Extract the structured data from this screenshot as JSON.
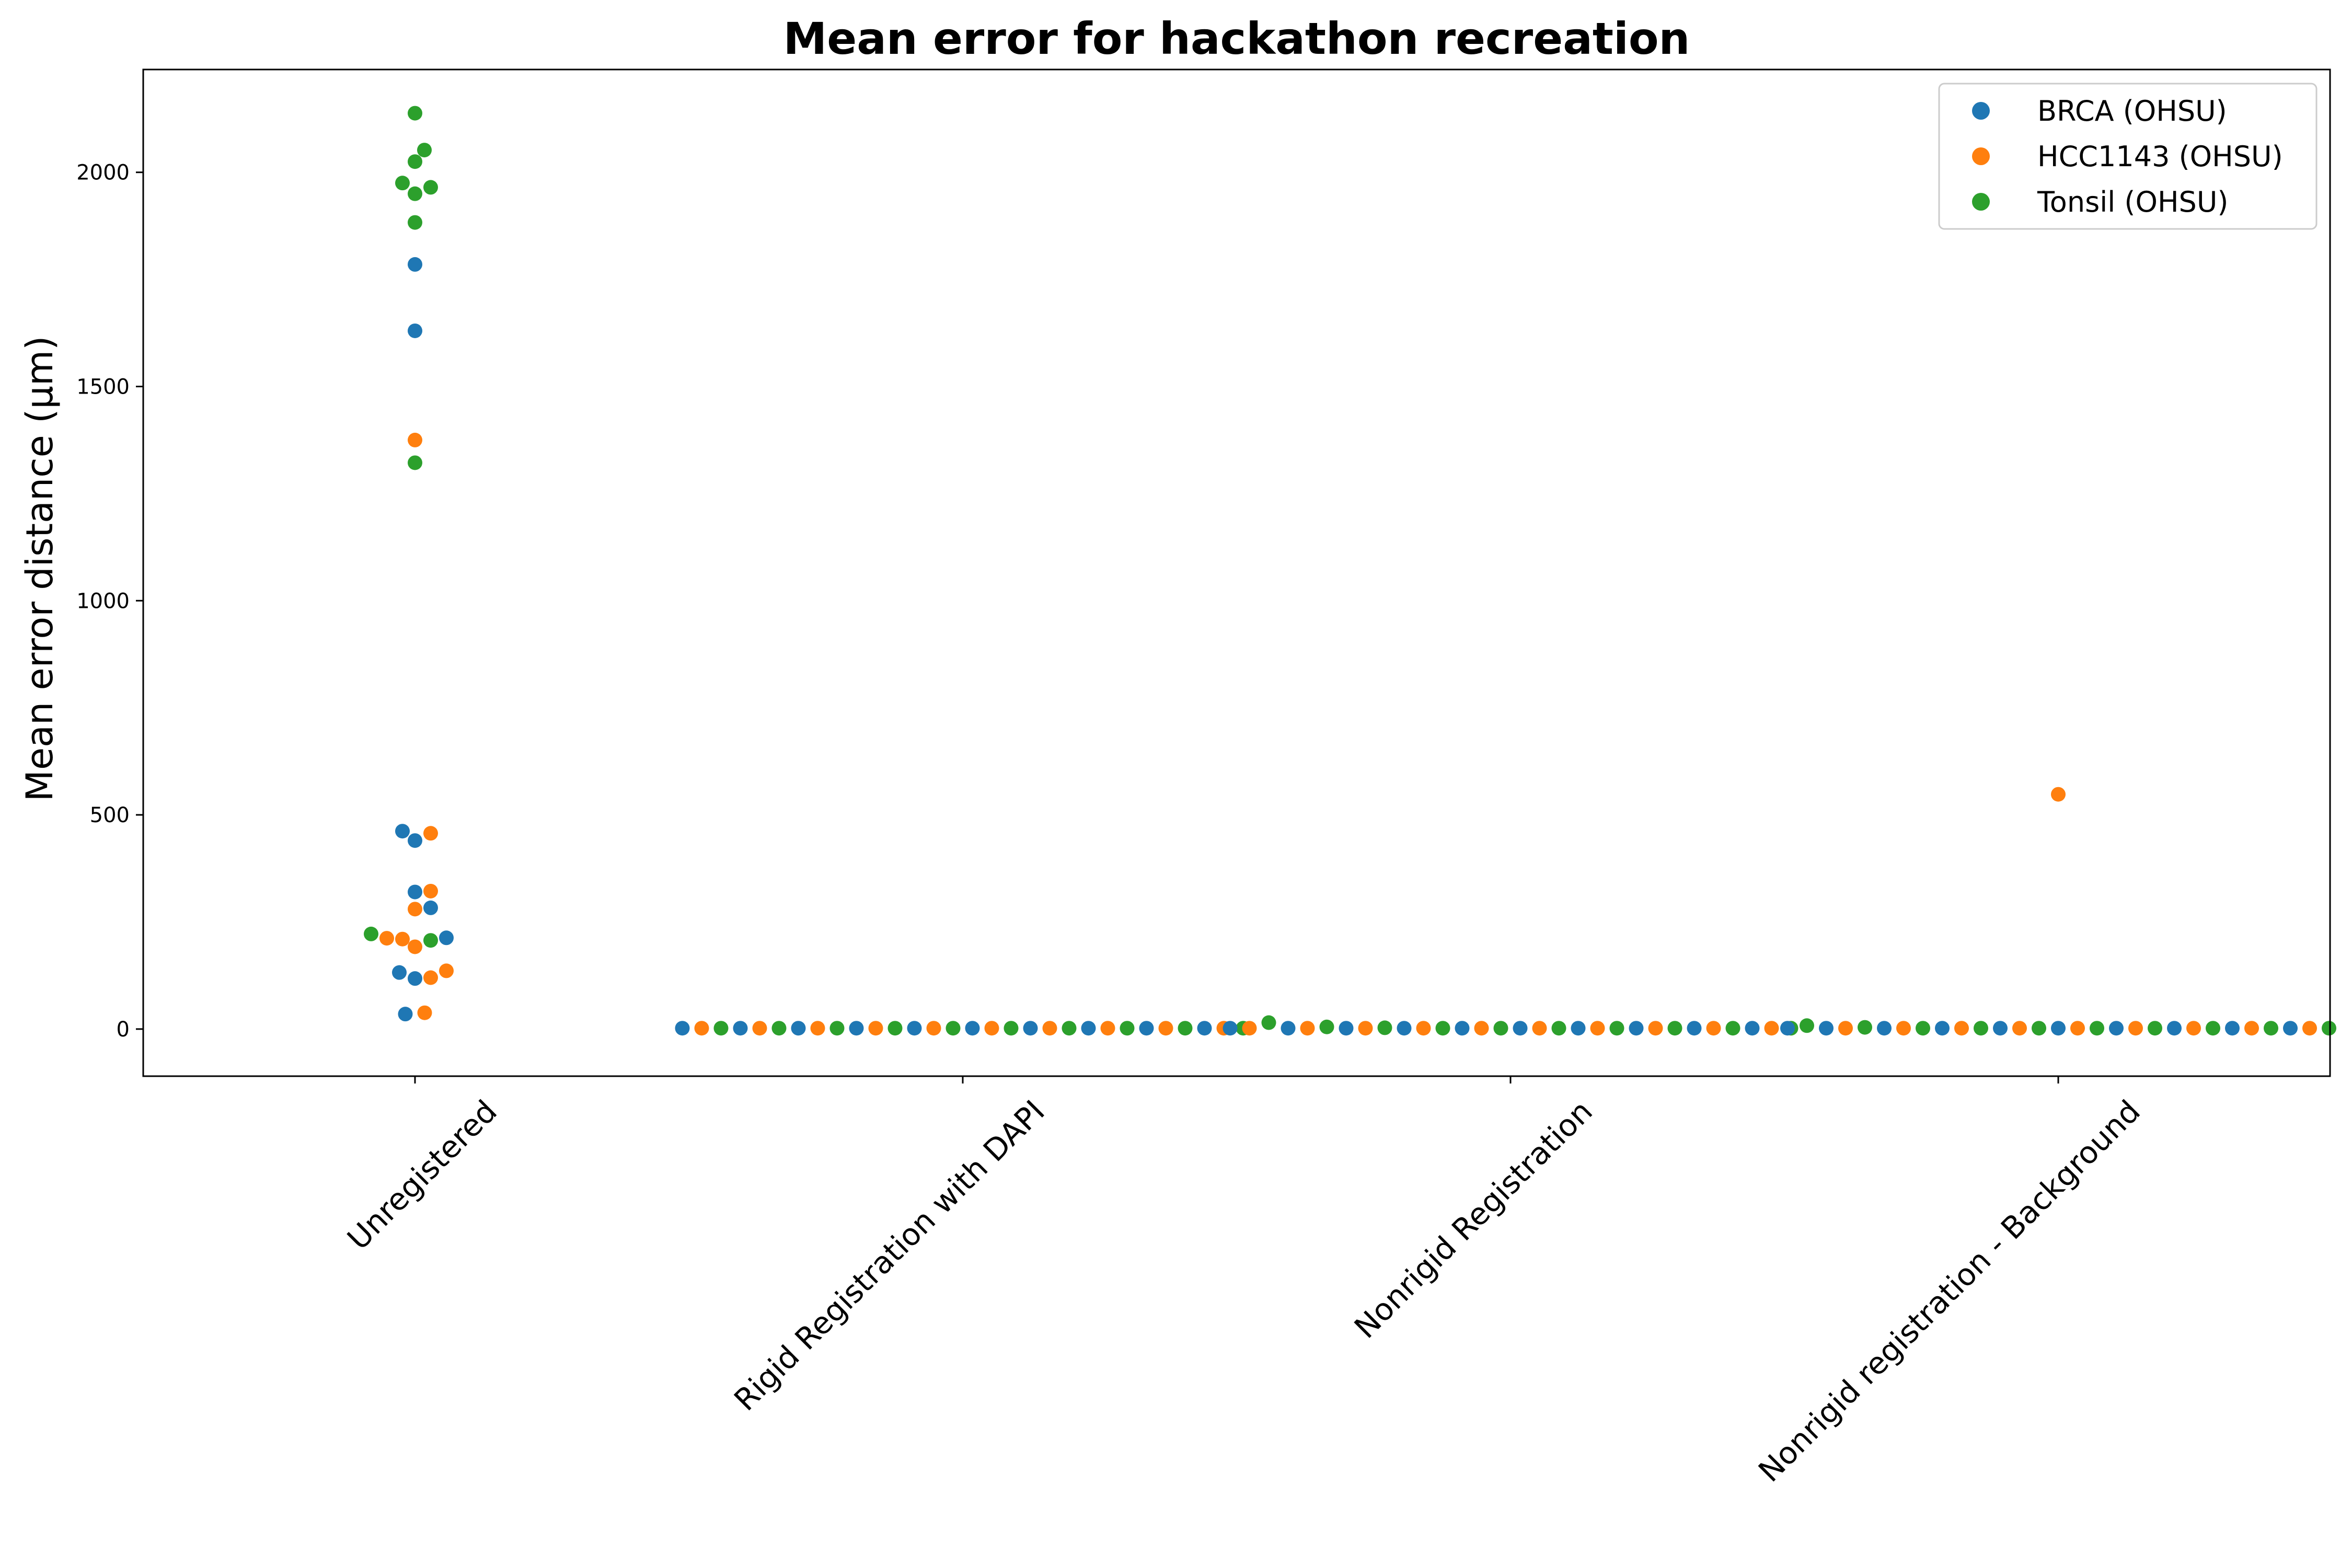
{
  "chart_data": {
    "type": "scatter",
    "title": "Mean error for hackathon recreation",
    "xlabel": "",
    "ylabel": "Mean error distance (µm)",
    "categories": [
      "Unregistered",
      "Rigid Registration with DAPI",
      "Nonrigid Registration",
      "Nonrigid registration - Background"
    ],
    "ylim": [
      -110,
      2240
    ],
    "yticks": [
      0,
      500,
      1000,
      1500,
      2000
    ],
    "grid": false,
    "legend_position": "upper-right",
    "series": [
      {
        "name": "BRCA (OHSU)",
        "color": "#1f77b4",
        "values": [
          [
            1785,
            1630,
            462,
            440,
            320,
            283,
            213,
            132,
            118,
            35
          ],
          [
            2,
            2,
            2,
            2,
            2,
            2,
            2,
            2,
            2,
            2
          ],
          [
            2,
            2,
            2,
            2,
            2,
            2,
            2,
            2,
            2,
            2
          ],
          [
            2,
            2,
            2,
            2,
            2,
            2,
            2,
            2,
            2,
            2
          ]
        ]
      },
      {
        "name": "HCC1143 (OHSU)",
        "color": "#ff7f0e",
        "values": [
          [
            1375,
            457,
            322,
            280,
            212,
            210,
            192,
            136,
            120,
            38
          ],
          [
            2,
            2,
            2,
            2,
            2,
            2,
            2,
            2,
            2,
            2
          ],
          [
            2,
            2,
            2,
            2,
            2,
            2,
            2,
            2,
            2,
            2
          ],
          [
            548,
            2,
            2,
            2,
            2,
            2,
            2,
            2,
            2,
            2
          ]
        ]
      },
      {
        "name": "Tonsil (OHSU)",
        "color": "#2ca02c",
        "values": [
          [
            2138,
            2052,
            2025,
            1975,
            1965,
            1950,
            1883,
            1322,
            222,
            207
          ],
          [
            2,
            2,
            2,
            2,
            2,
            2,
            2,
            2,
            2,
            2
          ],
          [
            15,
            5,
            3,
            2,
            2,
            2,
            2,
            2,
            2,
            2
          ],
          [
            8,
            4,
            2,
            2,
            2,
            2,
            2,
            2,
            2,
            2
          ]
        ]
      }
    ]
  }
}
